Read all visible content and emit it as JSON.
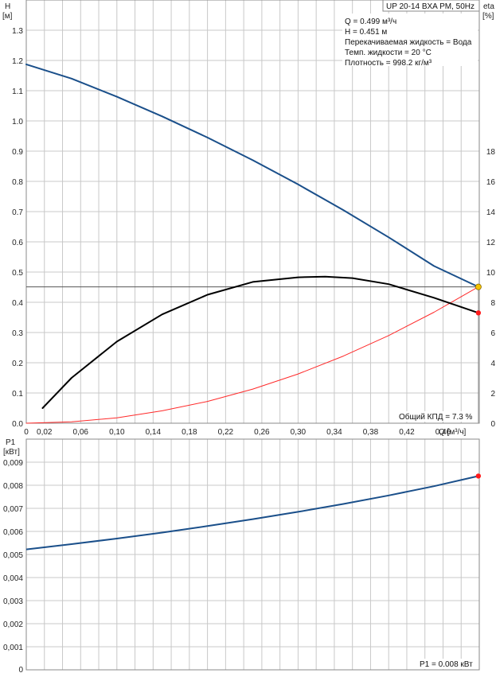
{
  "colors": {
    "head_curve": "#1a4f8a",
    "efficiency_curve": "#000000",
    "system_curve": "#ff2a2a",
    "operating_point": "#f5c400",
    "power_curve": "#1a4f8a",
    "end_point": "#ff1a1a",
    "grid": "#c8c8c8"
  },
  "chart_data": [
    {
      "type": "line",
      "title": "UP 20-14 BXA PM, 50Hz",
      "xlabel": "Q [м³/ч]",
      "ylabel_left": [
        "H",
        "[м]"
      ],
      "ylabel_right": [
        "eta",
        "[%]"
      ],
      "xlim": [
        0,
        0.5
      ],
      "ylim_left": [
        0,
        1.4
      ],
      "ylim_right": [
        0,
        28
      ],
      "x_ticks": [
        "0",
        "0,02",
        "0,06",
        "0,10",
        "0,14",
        "0,18",
        "0,22",
        "0,26",
        "0,30",
        "0,34",
        "0,38",
        "0,42",
        "0,46"
      ],
      "y_ticks_left": [
        "0.0",
        "0.1",
        "0.2",
        "0.3",
        "0.4",
        "0.5",
        "0.6",
        "0.7",
        "0.8",
        "0.9",
        "1.0",
        "1.1",
        "1.2",
        "1.3"
      ],
      "y_ticks_right": [
        "0",
        "2",
        "4",
        "6",
        "8",
        "10",
        "12",
        "14",
        "16",
        "18"
      ],
      "info": [
        "Q = 0.499 м³/ч",
        "H = 0.451 м",
        "Перекачиваемая жидкость = Вода",
        "Темп. жидкости = 20 °C",
        "Плотность = 998.2 кг/м³"
      ],
      "footer_note": "Общий КПД = 7.3 %",
      "grid": true,
      "series": [
        {
          "axis": "left",
          "x": [
            0.0,
            0.05,
            0.1,
            0.15,
            0.2,
            0.25,
            0.3,
            0.35,
            0.4,
            0.45,
            0.499
          ],
          "y": [
            1.187,
            1.14,
            1.08,
            1.015,
            0.945,
            0.87,
            0.79,
            0.705,
            0.615,
            0.52,
            0.451
          ]
        },
        {
          "axis": "right",
          "x": [
            0.018,
            0.05,
            0.1,
            0.15,
            0.2,
            0.25,
            0.3,
            0.33,
            0.36,
            0.4,
            0.45,
            0.499
          ],
          "y": [
            1.0,
            3.0,
            5.4,
            7.2,
            8.5,
            9.35,
            9.65,
            9.7,
            9.6,
            9.2,
            8.3,
            7.3
          ]
        },
        {
          "axis": "left",
          "x": [
            0.0,
            0.05,
            0.1,
            0.15,
            0.2,
            0.25,
            0.3,
            0.35,
            0.4,
            0.45,
            0.499
          ],
          "y": [
            0.0,
            0.0045,
            0.018,
            0.041,
            0.072,
            0.113,
            0.163,
            0.222,
            0.29,
            0.367,
            0.451
          ]
        }
      ],
      "operating_point": {
        "x": 0.499,
        "y": 0.451
      },
      "efficiency_end_point": {
        "x": 0.499,
        "y": 7.3
      }
    },
    {
      "type": "line",
      "ylabel": [
        "P1",
        "[кВт]"
      ],
      "xlim": [
        0,
        0.5
      ],
      "ylim": [
        0,
        0.01
      ],
      "y_ticks": [
        "0",
        "0,001",
        "0,002",
        "0,003",
        "0,004",
        "0,005",
        "0,006",
        "0,007",
        "0,008",
        "0,009"
      ],
      "footer_note": "P1 = 0.008 кВт",
      "grid": true,
      "series": [
        {
          "x": [
            0.0,
            0.05,
            0.1,
            0.15,
            0.2,
            0.25,
            0.3,
            0.35,
            0.4,
            0.45,
            0.499
          ],
          "y": [
            0.00522,
            0.00545,
            0.00569,
            0.00595,
            0.00623,
            0.00653,
            0.00685,
            0.00719,
            0.00756,
            0.00796,
            0.0084
          ]
        }
      ],
      "end_point": {
        "x": 0.499,
        "y": 0.0084
      }
    }
  ]
}
